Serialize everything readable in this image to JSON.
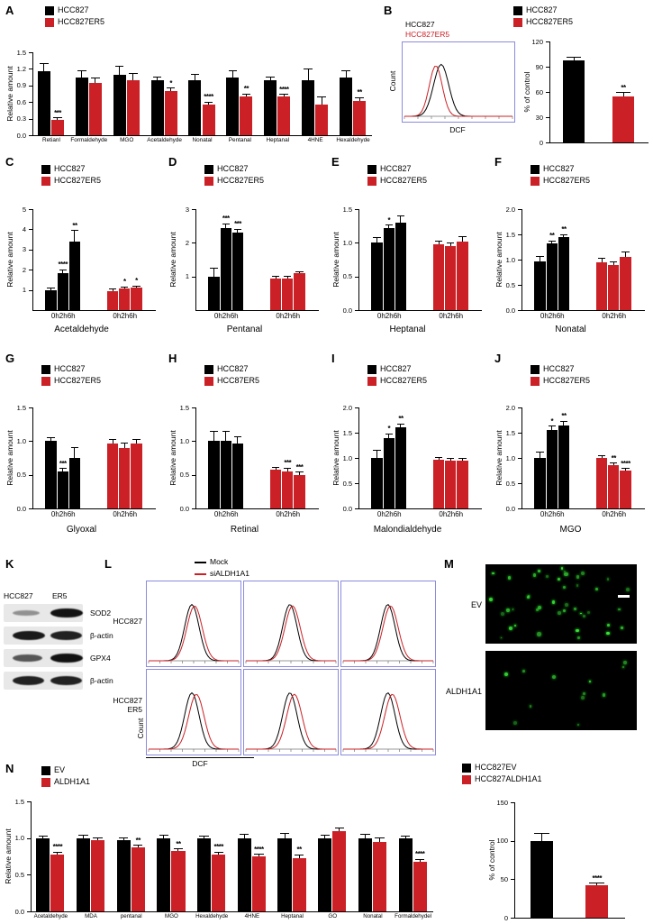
{
  "colors": {
    "black": "#000000",
    "red": "#cb2026",
    "flow_border": "#8b8bdc",
    "green": "#39e639"
  },
  "chart_data": [
    {
      "panel": "A",
      "type": "bar",
      "title": "",
      "ylabel": "Relative amount",
      "ylim": [
        0,
        1.5
      ],
      "yticks": [
        "0.0",
        "0.3",
        "0.6",
        "0.9",
        "1.2",
        "1.5"
      ],
      "group_fill": 0.72,
      "xlabel_size": 6.4,
      "legend": [
        {
          "label": "HCC827",
          "color": "#000000"
        },
        {
          "label": "HCC827ER5",
          "color": "#cb2026"
        }
      ],
      "categories": [
        "Retianl",
        "Formaldehyde",
        "MGO",
        "Acetaldehyde",
        "Nonatal",
        "Pentanal",
        "Heptanal",
        "4HNE",
        "Hexaldehyde"
      ],
      "series": [
        {
          "name": "HCC827",
          "color": "#000000",
          "values": [
            1.15,
            1.05,
            1.1,
            1.0,
            1.0,
            1.05,
            1.0,
            1.0,
            1.05
          ],
          "errors": [
            0.15,
            0.12,
            0.15,
            0.05,
            0.1,
            0.12,
            0.05,
            0.2,
            0.12
          ],
          "sig": [
            "",
            "",
            "",
            "",
            "",
            "",
            "",
            "",
            ""
          ]
        },
        {
          "name": "HCC827ER5",
          "color": "#cb2026",
          "values": [
            0.27,
            0.95,
            1.0,
            0.8,
            0.55,
            0.7,
            0.7,
            0.55,
            0.62
          ],
          "errors": [
            0.04,
            0.08,
            0.12,
            0.05,
            0.05,
            0.05,
            0.04,
            0.15,
            0.06
          ],
          "sig": [
            "***",
            "",
            "",
            "*",
            "****",
            "**",
            "****",
            "",
            "**"
          ]
        }
      ]
    },
    {
      "panel": "B",
      "type": "bar",
      "title": "",
      "ylabel": "% of control",
      "ylim": [
        0,
        120
      ],
      "yticks": [
        "0",
        "30",
        "60",
        "90",
        "120"
      ],
      "group_fill": 0.45,
      "legend": [
        {
          "label": "HCC827",
          "color": "#000000"
        },
        {
          "label": "HCC827ER5",
          "color": "#cb2026"
        }
      ],
      "bars": [
        {
          "label": "HCC827",
          "color": "#000000",
          "value": 97,
          "error": 4,
          "sig": ""
        },
        {
          "label": "HCC827ER5",
          "color": "#cb2026",
          "value": 55,
          "error": 4,
          "sig": "**"
        }
      ]
    },
    {
      "panel": "C",
      "type": "bar",
      "title": "Acetaldehyde",
      "ylabel": "Relative amount",
      "ylim": [
        0,
        5
      ],
      "yticks": [
        "1",
        "2",
        "3",
        "4",
        "5"
      ],
      "group_fill": 0.58,
      "cluster_label": "0h2h6h",
      "legend": [
        {
          "label": "HCC827",
          "color": "#000000"
        },
        {
          "label": "HCC827ER5",
          "color": "#cb2026"
        }
      ],
      "clusters": [
        {
          "name": "HCC827",
          "color": "#000000",
          "values": [
            1.0,
            1.85,
            3.4
          ],
          "errors": [
            0.1,
            0.15,
            0.55
          ],
          "sig": [
            "",
            "****",
            "**"
          ]
        },
        {
          "name": "HCC827ER5",
          "color": "#cb2026",
          "values": [
            0.95,
            1.05,
            1.1
          ],
          "errors": [
            0.08,
            0.1,
            0.1
          ],
          "sig": [
            "",
            "*",
            "*"
          ]
        }
      ]
    },
    {
      "panel": "D",
      "type": "bar",
      "title": "Pentanal",
      "ylabel": "Relative amount",
      "ylim": [
        0,
        3
      ],
      "yticks": [
        "1",
        "2",
        "3"
      ],
      "group_fill": 0.58,
      "cluster_label": "0h2h6h",
      "legend": [
        {
          "label": "HCC827",
          "color": "#000000"
        },
        {
          "label": "HCC827ER5",
          "color": "#cb2026"
        }
      ],
      "clusters": [
        {
          "name": "HCC827",
          "color": "#000000",
          "values": [
            1.0,
            2.45,
            2.3
          ],
          "errors": [
            0.25,
            0.12,
            0.1
          ],
          "sig": [
            "",
            "***",
            "***"
          ]
        },
        {
          "name": "HCC827ER5",
          "color": "#cb2026",
          "values": [
            0.95,
            0.95,
            1.1
          ],
          "errors": [
            0.05,
            0.05,
            0.05
          ],
          "sig": [
            "",
            "",
            ""
          ]
        }
      ]
    },
    {
      "panel": "E",
      "type": "bar",
      "title": "Heptanal",
      "ylabel": "Relative amount",
      "ylim": [
        0,
        1.5
      ],
      "yticks": [
        "0.0",
        "0.5",
        "1.0",
        "1.5"
      ],
      "group_fill": 0.58,
      "cluster_label": "0h2h6h",
      "legend": [
        {
          "label": "HCC827",
          "color": "#000000"
        },
        {
          "label": "HCC827ER5",
          "color": "#cb2026"
        }
      ],
      "clusters": [
        {
          "name": "HCC827",
          "color": "#000000",
          "values": [
            1.0,
            1.22,
            1.3
          ],
          "errors": [
            0.08,
            0.04,
            0.1
          ],
          "sig": [
            "",
            "*",
            ""
          ]
        },
        {
          "name": "HCC827ER5",
          "color": "#cb2026",
          "values": [
            0.98,
            0.95,
            1.02
          ],
          "errors": [
            0.05,
            0.05,
            0.07
          ],
          "sig": [
            "",
            "",
            ""
          ]
        }
      ]
    },
    {
      "panel": "F",
      "type": "bar",
      "title": "Nonatal",
      "ylabel": "Relative amount",
      "ylim": [
        0,
        2
      ],
      "yticks": [
        "0.0",
        "0.5",
        "1.0",
        "1.5",
        "2.0"
      ],
      "group_fill": 0.58,
      "cluster_label": "0h2h6h",
      "legend": [
        {
          "label": "HCC827",
          "color": "#000000"
        },
        {
          "label": "HCC827ER5",
          "color": "#cb2026"
        }
      ],
      "clusters": [
        {
          "name": "HCC827",
          "color": "#000000",
          "values": [
            0.97,
            1.32,
            1.45
          ],
          "errors": [
            0.1,
            0.05,
            0.05
          ],
          "sig": [
            "",
            "**",
            "**"
          ]
        },
        {
          "name": "HCC827ER5",
          "color": "#cb2026",
          "values": [
            0.95,
            0.9,
            1.05
          ],
          "errors": [
            0.07,
            0.05,
            0.1
          ],
          "sig": [
            "",
            "",
            ""
          ]
        }
      ]
    },
    {
      "panel": "G",
      "type": "bar",
      "title": "Glyoxal",
      "ylabel": "Relative amount",
      "ylim": [
        0,
        1.5
      ],
      "yticks": [
        "0.0",
        "0.5",
        "1.0",
        "1.5"
      ],
      "group_fill": 0.58,
      "cluster_label": "0h2h6h",
      "legend": [
        {
          "label": "HCC827",
          "color": "#000000"
        },
        {
          "label": "HCC827ER5",
          "color": "#cb2026"
        }
      ],
      "clusters": [
        {
          "name": "HCC827",
          "color": "#000000",
          "values": [
            1.0,
            0.55,
            0.75
          ],
          "errors": [
            0.05,
            0.04,
            0.15
          ],
          "sig": [
            "",
            "***",
            ""
          ]
        },
        {
          "name": "HCC827ER5",
          "color": "#cb2026",
          "values": [
            0.97,
            0.9,
            0.97
          ],
          "errors": [
            0.06,
            0.07,
            0.05
          ],
          "sig": [
            "",
            "",
            ""
          ]
        }
      ]
    },
    {
      "panel": "H",
      "type": "bar",
      "title": "Retinal",
      "ylabel": "Relative amount",
      "ylim": [
        0,
        1.5
      ],
      "yticks": [
        "0.0",
        "0.5",
        "1.0",
        "1.5"
      ],
      "group_fill": 0.58,
      "cluster_label": "0h2h6h",
      "legend": [
        {
          "label": "HCC827",
          "color": "#000000"
        },
        {
          "label": "HCC87ER5",
          "color": "#cb2026"
        }
      ],
      "clusters": [
        {
          "name": "HCC827",
          "color": "#000000",
          "values": [
            1.0,
            1.0,
            0.97
          ],
          "errors": [
            0.15,
            0.15,
            0.1
          ],
          "sig": [
            "",
            "",
            ""
          ]
        },
        {
          "name": "HCC87ER5",
          "color": "#cb2026",
          "values": [
            0.57,
            0.55,
            0.5
          ],
          "errors": [
            0.04,
            0.05,
            0.04
          ],
          "sig": [
            "",
            "***",
            "***"
          ]
        }
      ]
    },
    {
      "panel": "I",
      "type": "bar",
      "title": "Malondialdehyde",
      "ylabel": "Relative amount",
      "ylim": [
        0,
        2
      ],
      "yticks": [
        "0.0",
        "0.5",
        "1.0",
        "1.5",
        "2.0"
      ],
      "group_fill": 0.58,
      "cluster_label": "0h2h6h",
      "legend": [
        {
          "label": "HCC827",
          "color": "#000000"
        },
        {
          "label": "HCC827ER5",
          "color": "#cb2026"
        }
      ],
      "clusters": [
        {
          "name": "HCC827",
          "color": "#000000",
          "values": [
            1.0,
            1.4,
            1.6
          ],
          "errors": [
            0.15,
            0.08,
            0.07
          ],
          "sig": [
            "",
            "*",
            "**"
          ]
        },
        {
          "name": "HCC827ER5",
          "color": "#cb2026",
          "values": [
            0.97,
            0.95,
            0.95
          ],
          "errors": [
            0.04,
            0.04,
            0.04
          ],
          "sig": [
            "",
            "",
            ""
          ]
        }
      ]
    },
    {
      "panel": "J",
      "type": "bar",
      "title": "MGO",
      "ylabel": "Relative amount",
      "ylim": [
        0,
        2
      ],
      "yticks": [
        "0.0",
        "0.5",
        "1.0",
        "1.5",
        "2.0"
      ],
      "group_fill": 0.58,
      "cluster_label": "0h2h6h",
      "legend": [
        {
          "label": "HCC827",
          "color": "#000000"
        },
        {
          "label": "HCC827ER5",
          "color": "#cb2026"
        }
      ],
      "clusters": [
        {
          "name": "HCC827",
          "color": "#000000",
          "values": [
            1.0,
            1.55,
            1.65
          ],
          "errors": [
            0.12,
            0.08,
            0.08
          ],
          "sig": [
            "",
            "*",
            "**"
          ]
        },
        {
          "name": "HCC827ER5",
          "color": "#cb2026",
          "values": [
            1.0,
            0.85,
            0.75
          ],
          "errors": [
            0.04,
            0.05,
            0.04
          ],
          "sig": [
            "",
            "**",
            "****"
          ]
        }
      ]
    },
    {
      "panel": "M",
      "type": "bar",
      "title": "",
      "ylabel": "% of control",
      "ylim": [
        0,
        150
      ],
      "yticks": [
        "0",
        "50",
        "100",
        "150"
      ],
      "group_fill": 0.42,
      "legend": [
        {
          "label": "HCC827EV",
          "color": "#000000"
        },
        {
          "label": "HCC827ALDH1A1",
          "color": "#cb2026"
        }
      ],
      "bars": [
        {
          "label": "HCC827EV",
          "color": "#000000",
          "value": 100,
          "error": 10,
          "sig": ""
        },
        {
          "label": "HCC827ALDH1A1",
          "color": "#cb2026",
          "value": 42,
          "error": 3,
          "sig": "****"
        }
      ]
    },
    {
      "panel": "N",
      "type": "bar",
      "title": "",
      "ylabel": "Relative amount",
      "ylim": [
        0,
        1.5
      ],
      "yticks": [
        "0.0",
        "0.5",
        "1.0",
        "1.5"
      ],
      "group_fill": 0.72,
      "xlabel_size": 6.2,
      "legend": [
        {
          "label": "EV",
          "color": "#000000"
        },
        {
          "label": "ALDH1A1",
          "color": "#cb2026"
        }
      ],
      "categories": [
        "Acetaldehyde",
        "MDA",
        "pentanal",
        "MGO",
        "Hexaldehyde",
        "4HNE",
        "Heptanal",
        "GO",
        "Nonatal",
        "Formaldehydel"
      ],
      "series": [
        {
          "name": "EV",
          "color": "#000000",
          "values": [
            1.0,
            1.0,
            0.97,
            1.0,
            1.0,
            1.0,
            1.0,
            1.0,
            1.0,
            1.0
          ],
          "errors": [
            0.03,
            0.04,
            0.03,
            0.04,
            0.03,
            0.05,
            0.06,
            0.04,
            0.05,
            0.03
          ],
          "sig": [
            "",
            "",
            "",
            "",
            "",
            "",
            "",
            "",
            "",
            ""
          ]
        },
        {
          "name": "ALDH1A1",
          "color": "#cb2026",
          "values": [
            0.78,
            0.97,
            0.87,
            0.82,
            0.78,
            0.75,
            0.73,
            1.1,
            0.95,
            0.68
          ],
          "errors": [
            0.03,
            0.03,
            0.03,
            0.03,
            0.03,
            0.03,
            0.04,
            0.04,
            0.05,
            0.03
          ],
          "sig": [
            "****",
            "",
            "**",
            "**",
            "****",
            "****",
            "**",
            "",
            "",
            "****"
          ]
        }
      ]
    }
  ],
  "panels": {
    "A": {
      "letter": "A"
    },
    "B": {
      "letter": "B",
      "hist": {
        "labels": [
          {
            "text": "HCC827",
            "color": "#000000"
          },
          {
            "text": "HCC827ER5",
            "color": "#cb2026"
          }
        ],
        "xlabel": "DCF",
        "ylabel": "Count",
        "curves": [
          {
            "color": "#000000",
            "mean": 0.34,
            "sigma": 0.07,
            "amp": 0.8
          },
          {
            "color": "#cb2026",
            "mean": 0.29,
            "sigma": 0.06,
            "amp": 0.78
          }
        ]
      }
    },
    "C": {
      "letter": "C"
    },
    "D": {
      "letter": "D"
    },
    "E": {
      "letter": "E"
    },
    "F": {
      "letter": "F"
    },
    "G": {
      "letter": "G"
    },
    "H": {
      "letter": "H"
    },
    "I": {
      "letter": "I"
    },
    "J": {
      "letter": "J"
    },
    "K": {
      "letter": "K",
      "header": [
        "HCC827",
        "ER5"
      ],
      "rows": [
        {
          "label": "SOD2",
          "bands": [
            0.25,
            1.0
          ]
        },
        {
          "label": "β-actin",
          "bands": [
            0.95,
            0.9
          ]
        },
        {
          "label": "GPX4",
          "bands": [
            0.6,
            1.0
          ]
        },
        {
          "label": "β-actin",
          "bands": [
            0.9,
            0.9
          ]
        }
      ]
    },
    "L": {
      "letter": "L",
      "legend": [
        {
          "label": "Mock",
          "color": "#000000"
        },
        {
          "label": "siALDH1A1",
          "color": "#cb2026"
        }
      ],
      "legend_style": "line",
      "row_labels": [
        "HCC827",
        "HCC827\nER5"
      ],
      "xlabel": "DCF",
      "ylabel": "Count",
      "curves": [
        {
          "color": "#000000",
          "mean": 0.48,
          "sigma": 0.08,
          "amp": 0.8
        },
        {
          "color": "#cb2026",
          "mean": 0.51,
          "sigma": 0.085,
          "amp": 0.78
        }
      ]
    },
    "M": {
      "letter": "M",
      "images": [
        {
          "label": "EV",
          "dots": 42
        },
        {
          "label": "ALDH1A1",
          "dots": 12
        }
      ],
      "scalebar": true
    },
    "N": {
      "letter": "N"
    }
  }
}
